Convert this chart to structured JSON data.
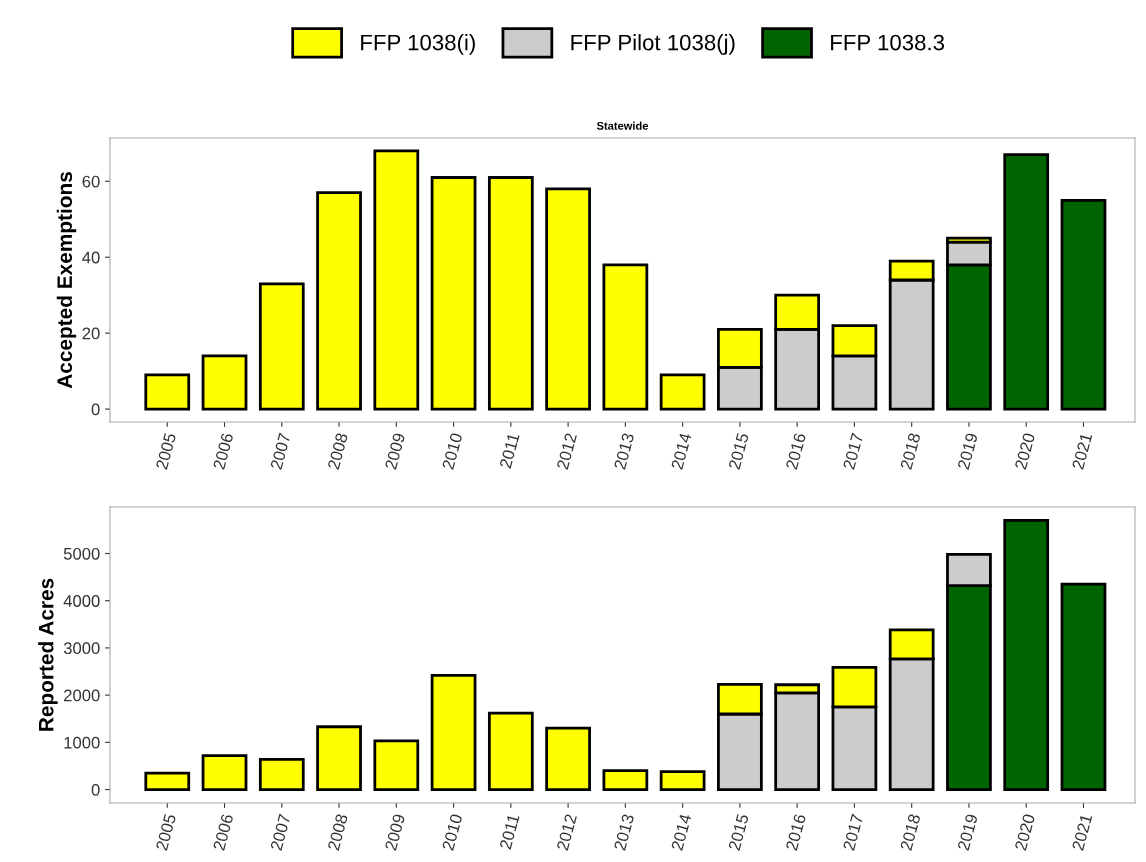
{
  "chart_data": [
    {
      "type": "bar",
      "title": "Statewide",
      "ylabel": "Accepted Exemptions",
      "stacked": true,
      "legend": "top",
      "grid": false,
      "categories": [
        "2005",
        "2006",
        "2007",
        "2008",
        "2009",
        "2010",
        "2011",
        "2012",
        "2013",
        "2014",
        "2015",
        "2016",
        "2017",
        "2018",
        "2019",
        "2020",
        "2021"
      ],
      "ylim": [
        -3.4,
        71.4
      ],
      "yticks": [
        0,
        20,
        40,
        60
      ],
      "series": [
        {
          "name": "FFP 1038.3",
          "color": "#006400",
          "values": [
            0,
            0,
            0,
            0,
            0,
            0,
            0,
            0,
            0,
            0,
            0,
            0,
            0,
            0,
            38,
            67,
            55
          ]
        },
        {
          "name": "FFP Pilot 1038(j)",
          "color": "#cccccc",
          "values": [
            0,
            0,
            0,
            0,
            0,
            0,
            0,
            0,
            0,
            0,
            11,
            21,
            14,
            34,
            6,
            0,
            0
          ]
        },
        {
          "name": "FFP 1038(i)",
          "color": "#ffff00",
          "values": [
            9,
            14,
            33,
            57,
            68,
            61,
            61,
            58,
            38,
            9,
            10,
            9,
            8,
            5,
            1,
            0,
            0
          ]
        }
      ]
    },
    {
      "type": "bar",
      "ylabel": "Reported Acres",
      "stacked": true,
      "grid": false,
      "categories": [
        "2005",
        "2006",
        "2007",
        "2008",
        "2009",
        "2010",
        "2011",
        "2012",
        "2013",
        "2014",
        "2015",
        "2016",
        "2017",
        "2018",
        "2019",
        "2020",
        "2021"
      ],
      "ylim": [
        -285,
        5985
      ],
      "yticks": [
        0,
        1000,
        2000,
        3000,
        4000,
        5000
      ],
      "series": [
        {
          "color": "#006400",
          "values": [
            0,
            0,
            0,
            0,
            0,
            0,
            0,
            0,
            0,
            0,
            0,
            0,
            0,
            0,
            4320,
            5700,
            4350
          ]
        },
        {
          "color": "#cccccc",
          "values": [
            0,
            0,
            0,
            0,
            0,
            0,
            0,
            0,
            0,
            0,
            1600,
            2050,
            1750,
            2770,
            660,
            0,
            0
          ]
        },
        {
          "color": "#ffff00",
          "values": [
            350,
            720,
            640,
            1330,
            1030,
            2420,
            1620,
            1300,
            400,
            380,
            630,
            170,
            840,
            610,
            0,
            0,
            0
          ]
        }
      ]
    }
  ]
}
